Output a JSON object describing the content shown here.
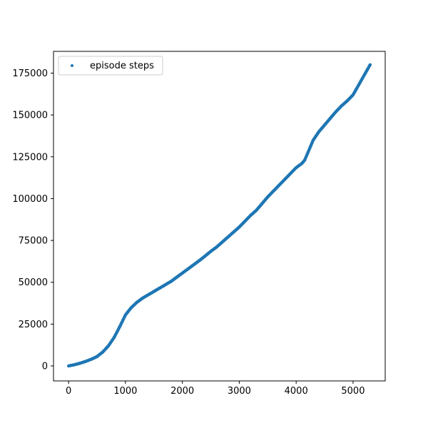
{
  "chart_data": {
    "type": "scatter",
    "title": "",
    "xlabel": "",
    "ylabel": "",
    "xlim": [
      -265,
      5565
    ],
    "ylim": [
      -8950,
      188000
    ],
    "xticks": [
      0,
      1000,
      2000,
      3000,
      4000,
      5000
    ],
    "yticks": [
      0,
      25000,
      50000,
      75000,
      100000,
      125000,
      150000,
      175000
    ],
    "xtick_labels": [
      "0",
      "1000",
      "2000",
      "3000",
      "4000",
      "5000"
    ],
    "ytick_labels": [
      "0",
      "25000",
      "50000",
      "75000",
      "100000",
      "125000",
      "150000",
      "175000"
    ],
    "grid": false,
    "legend": {
      "location": "upper left",
      "entries": [
        {
          "label": "episode steps",
          "color": "#1f77b4"
        }
      ]
    },
    "series": [
      {
        "name": "episode steps",
        "color": "#1f77b4",
        "marker": "circle",
        "x": [
          0,
          100,
          200,
          300,
          400,
          500,
          600,
          700,
          800,
          900,
          1000,
          1100,
          1200,
          1300,
          1400,
          1500,
          1600,
          1700,
          1800,
          1900,
          2000,
          2100,
          2200,
          2300,
          2400,
          2500,
          2600,
          2700,
          2800,
          2900,
          3000,
          3100,
          3200,
          3300,
          3350,
          3400,
          3500,
          3600,
          3700,
          3800,
          3900,
          4000,
          4100,
          4150,
          4200,
          4250,
          4300,
          4350,
          4400,
          4450,
          4500,
          4600,
          4700,
          4800,
          4900,
          5000,
          5050,
          5100,
          5150,
          5200,
          5250,
          5300
        ],
        "y": [
          0,
          700,
          1600,
          2700,
          4000,
          5600,
          8300,
          12000,
          17000,
          23500,
          30500,
          34800,
          38000,
          40500,
          42500,
          44500,
          46500,
          48500,
          50500,
          53000,
          55500,
          58000,
          60500,
          63000,
          65700,
          68500,
          71000,
          74000,
          77000,
          80000,
          83000,
          86500,
          90000,
          93000,
          95000,
          97000,
          101000,
          104500,
          108000,
          111500,
          115000,
          118500,
          121000,
          123000,
          127000,
          131000,
          135000,
          137500,
          140000,
          142000,
          144000,
          148000,
          152000,
          155500,
          158500,
          162000,
          165000,
          168000,
          171000,
          174000,
          177000,
          180000
        ]
      }
    ]
  }
}
